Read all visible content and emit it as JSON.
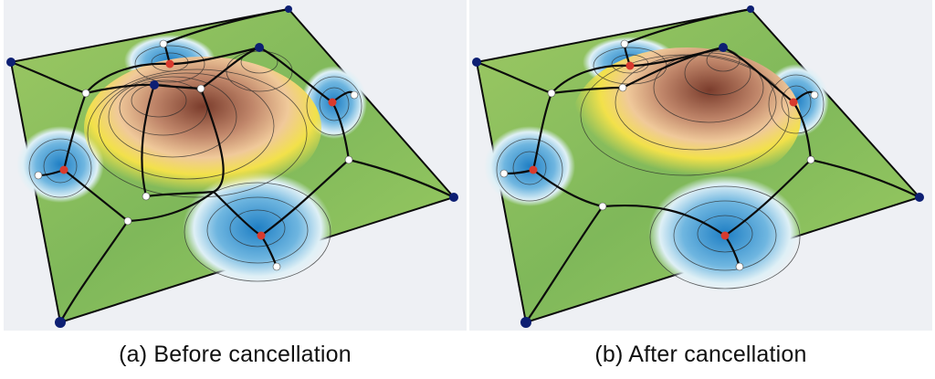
{
  "figure": {
    "panels": [
      {
        "id": "a",
        "caption": "(a)  Before cancellation"
      },
      {
        "id": "b",
        "caption": "(b)  After cancellation"
      }
    ],
    "colors": {
      "background_panel": "#eef0f4",
      "surface_green": "#8cc260",
      "surface_low_blue": "#2f8fd0",
      "surface_mid_white": "#f4f8f8",
      "surface_yellow": "#f1df3a",
      "surface_peak_brown": "#a8664a",
      "maximum_node": "#0d1f73",
      "saddle_node": "#ffffff",
      "minimum_node": "#d83a2e",
      "mesh_edge": "#0b0b0b",
      "contour_line": "#2a2a2a"
    }
  }
}
